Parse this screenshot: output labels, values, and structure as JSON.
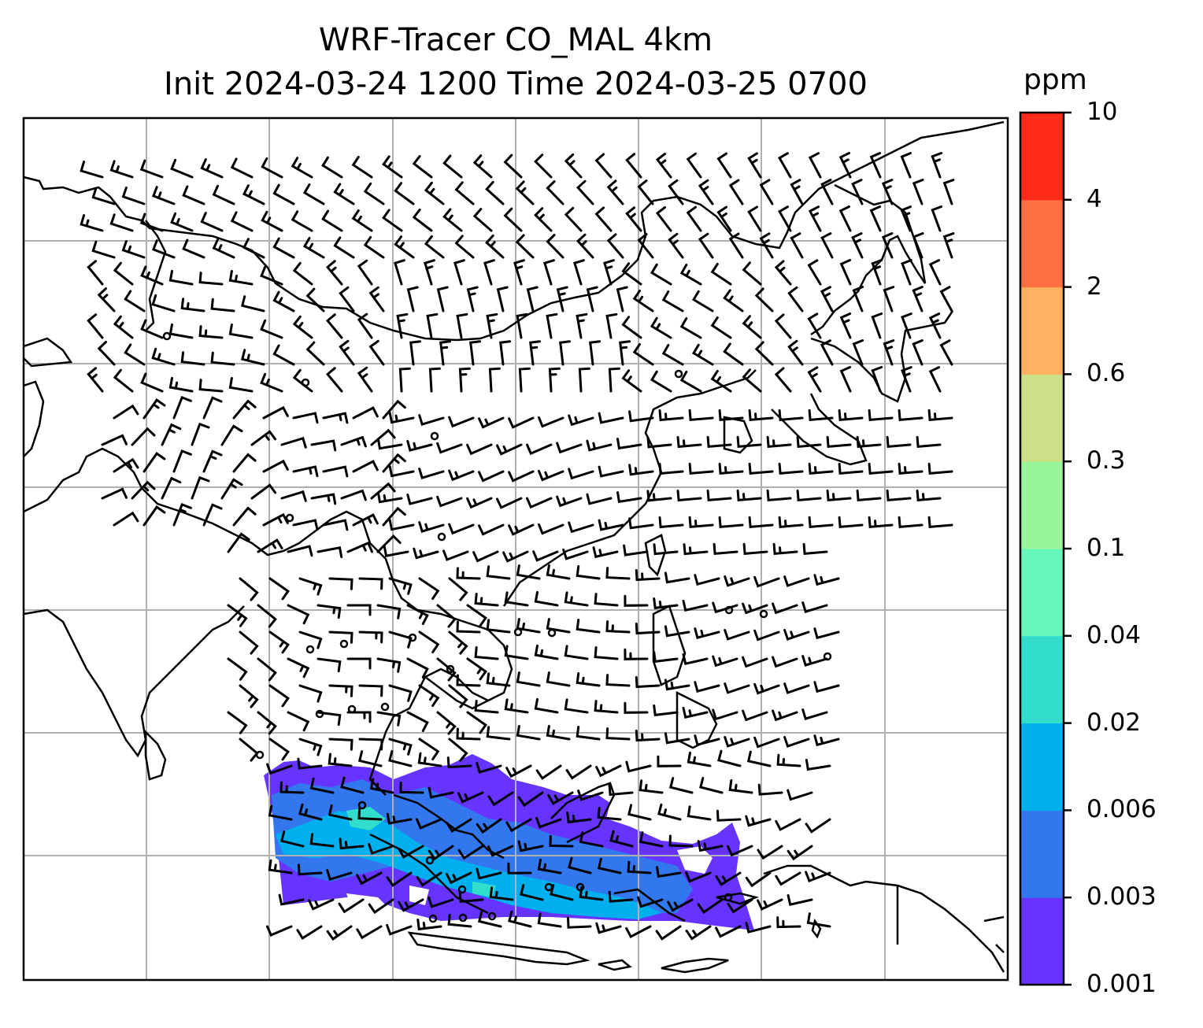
{
  "title": {
    "line1": "WRF-Tracer CO_MAL 4km",
    "line2": "Init 2024-03-24 1200 Time 2024-03-25 0700"
  },
  "colorbar": {
    "unit": "ppm",
    "levels": [
      "0.001",
      "0.003",
      "0.006",
      "0.02",
      "0.04",
      "0.1",
      "0.3",
      "0.6",
      "2",
      "4",
      "10"
    ],
    "colors": [
      "#6633ff",
      "#3377ee",
      "#00b0ee",
      "#33ddcc",
      "#66f6bb",
      "#99f599",
      "#cce088",
      "#ffb060",
      "#ff7040",
      "#ff2a18"
    ]
  },
  "map": {
    "field": "CO_MAL tracer concentration",
    "gridlines": true,
    "coastline_color": "#000000",
    "barb_color": "#000000"
  }
}
